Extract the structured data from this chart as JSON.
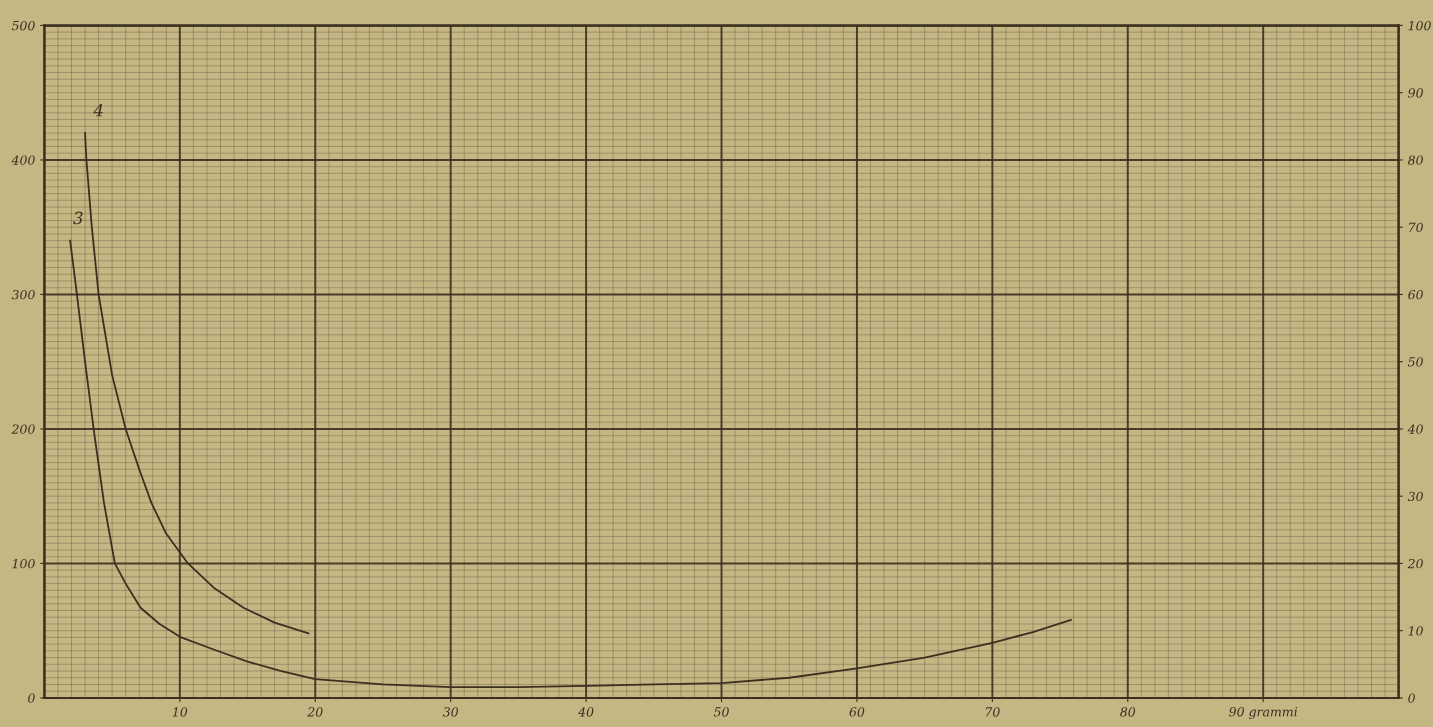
{
  "chart_data": {
    "type": "line",
    "series": [
      {
        "name": "3",
        "color": "#3b2f1f",
        "x": [
          1.9,
          2.4,
          3.0,
          3.7,
          4.4,
          5.2,
          6.0,
          7.1,
          8.5,
          10.1,
          12.5,
          15,
          17.5,
          20,
          25,
          30,
          35,
          40,
          45,
          50,
          55,
          60,
          65,
          70,
          73,
          75.8
        ],
        "values": [
          340,
          300,
          250,
          195,
          145,
          100,
          85,
          67,
          55,
          45,
          36,
          27,
          20,
          14,
          10,
          8,
          8,
          9,
          10,
          11,
          15,
          22,
          30,
          41,
          49,
          58
        ]
      },
      {
        "name": "4",
        "color": "#3b2f1f",
        "x": [
          3.0,
          3.1,
          3.5,
          4.0,
          5.0,
          6.0,
          7.0,
          7.9,
          9.0,
          10.6,
          12.5,
          14.7,
          17,
          19.5
        ],
        "values": [
          420,
          400,
          350,
          300,
          240,
          200,
          170,
          145,
          122,
          100,
          82,
          67,
          56,
          48
        ]
      }
    ],
    "xlim": [
      0,
      100
    ],
    "xticks": [
      10,
      20,
      30,
      40,
      50,
      60,
      70,
      80,
      {
        "value": 90,
        "label": "90 grammi"
      }
    ],
    "ylim": [
      0,
      500
    ],
    "yticks": [
      0,
      100,
      200,
      300,
      400,
      500
    ],
    "y2lim": [
      0,
      100
    ],
    "y2ticks": [
      0,
      10,
      20,
      30,
      40,
      50,
      60,
      70,
      80,
      90,
      100
    ],
    "grid": true,
    "marker": "none",
    "line_style": "solid"
  }
}
